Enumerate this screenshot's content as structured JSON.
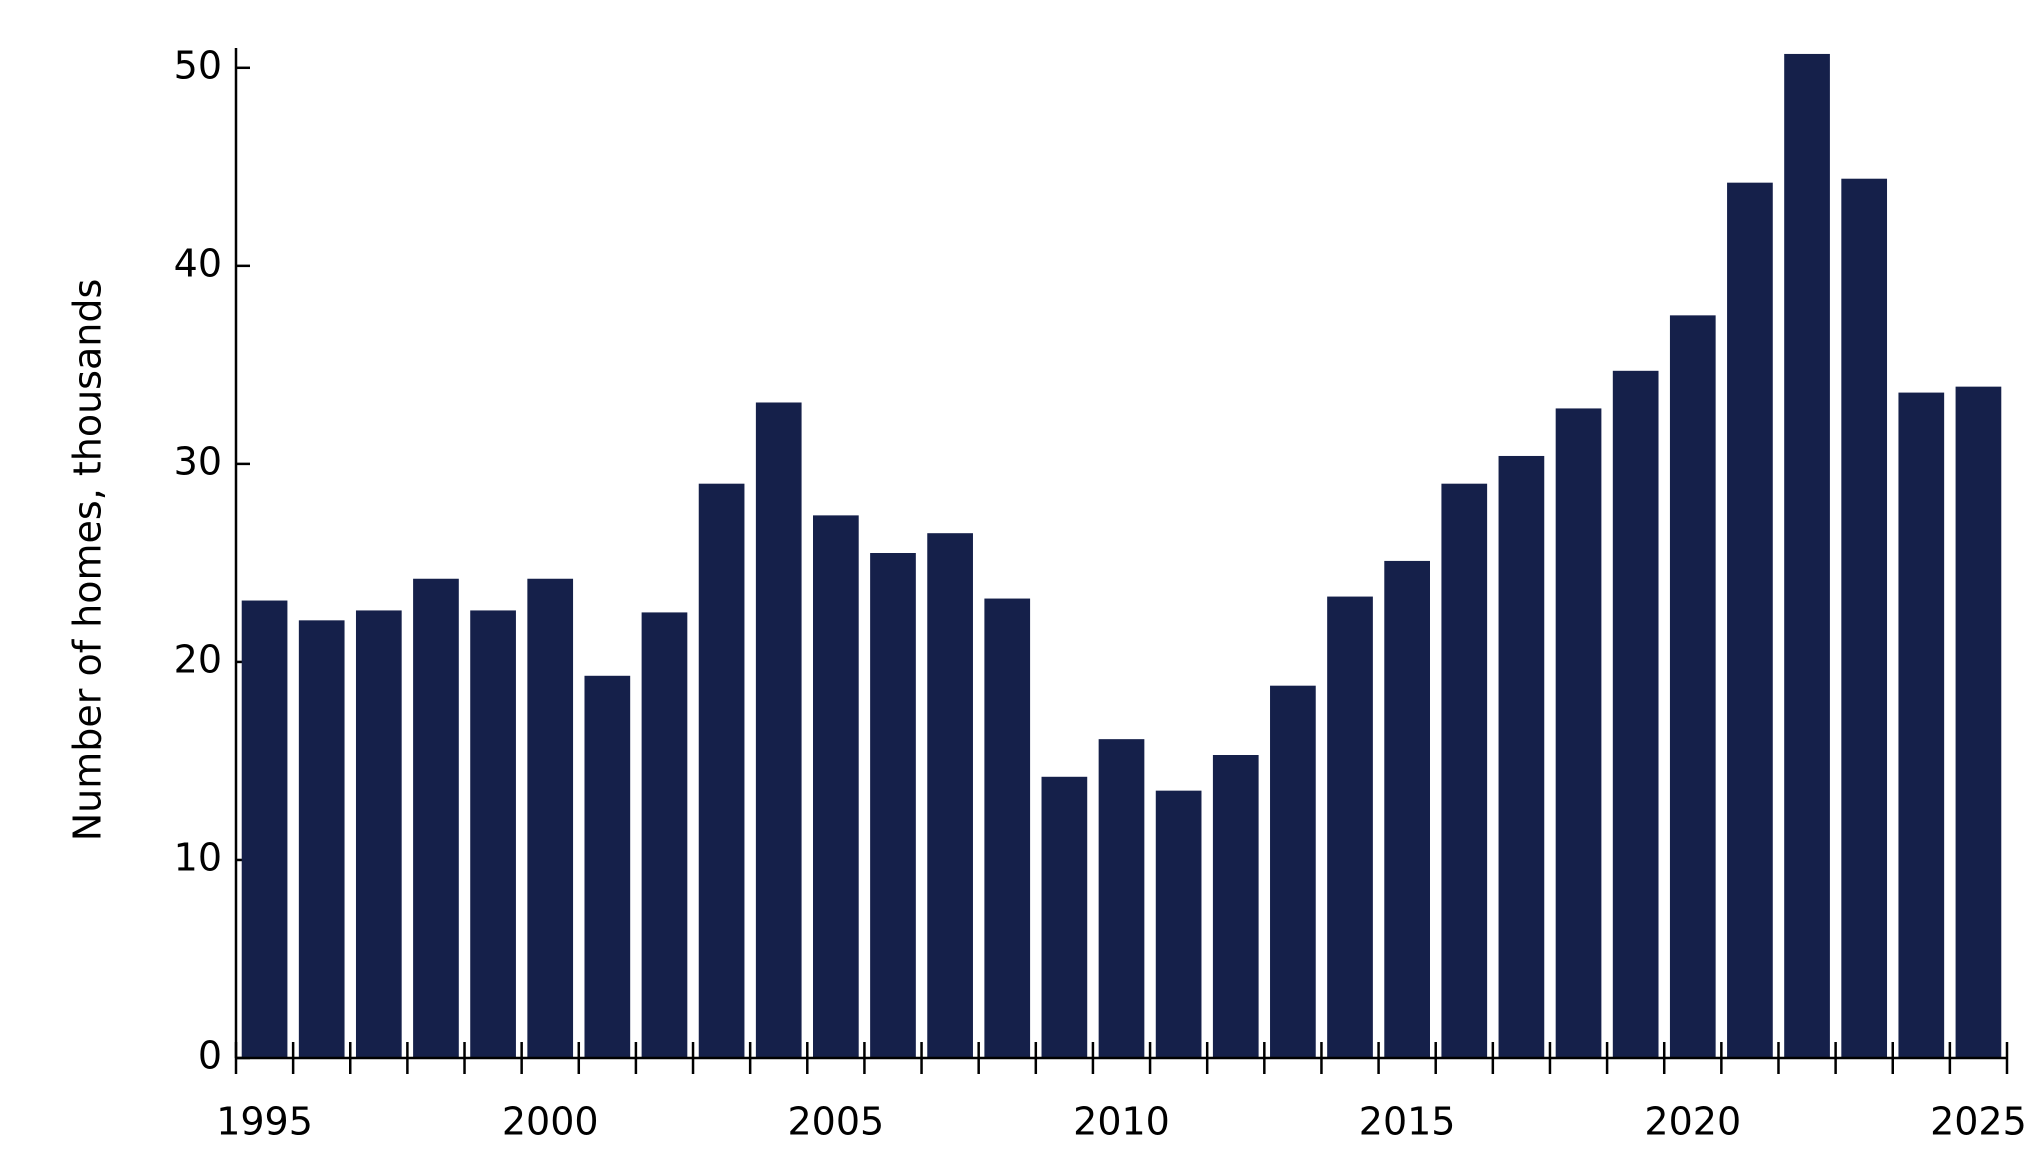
{
  "chart_data": {
    "type": "bar",
    "y_label": "Number of homes, thousands",
    "categories": [
      "1995",
      null,
      null,
      null,
      null,
      "2000",
      null,
      null,
      null,
      null,
      "2005",
      null,
      null,
      null,
      null,
      "2010",
      null,
      null,
      null,
      null,
      "2015",
      null,
      null,
      null,
      null,
      "2020",
      null,
      null,
      null,
      null,
      "2025"
    ],
    "values": [
      23.1,
      22.1,
      22.6,
      24.2,
      22.6,
      24.2,
      19.3,
      22.5,
      29.0,
      33.1,
      27.4,
      25.5,
      26.5,
      23.2,
      14.2,
      16.1,
      13.5,
      15.3,
      18.8,
      23.3,
      25.1,
      29.0,
      30.4,
      32.8,
      34.7,
      37.5,
      44.2,
      50.7,
      44.4,
      33.6,
      33.9
    ],
    "color": "#15204a",
    "ylim": [
      0,
      51
    ],
    "yticks": [
      0,
      10,
      20,
      30,
      40,
      50
    ],
    "grid": false
  }
}
